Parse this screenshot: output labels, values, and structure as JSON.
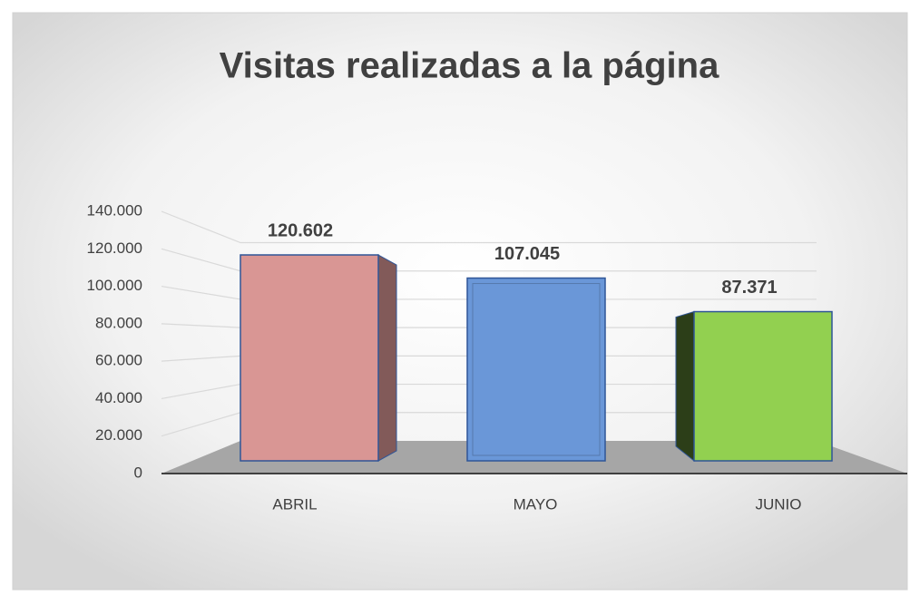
{
  "chart_data": {
    "type": "bar3d",
    "title": "Visitas realizadas a la página",
    "categories": [
      "ABRIL",
      "MAYO",
      "JUNIO"
    ],
    "values": [
      120602,
      107045,
      87371
    ],
    "value_labels": [
      "120.602",
      "107.045",
      "87.371"
    ],
    "colors": [
      "#d99694",
      "#6a97d8",
      "#92d050"
    ],
    "ylim": [
      0,
      140000
    ],
    "yticks": [
      0,
      {
        "value": 20000,
        "label": "20.000"
      },
      {
        "value": 40000,
        "label": "40.000"
      },
      {
        "value": 60000,
        "label": "60.000"
      },
      {
        "value": 80000,
        "label": "80.000"
      },
      {
        "value": 100000,
        "label": "100.000"
      },
      {
        "value": 120000,
        "label": "120.000"
      },
      {
        "value": 140000,
        "label": "140.000"
      }
    ],
    "grid": true
  }
}
